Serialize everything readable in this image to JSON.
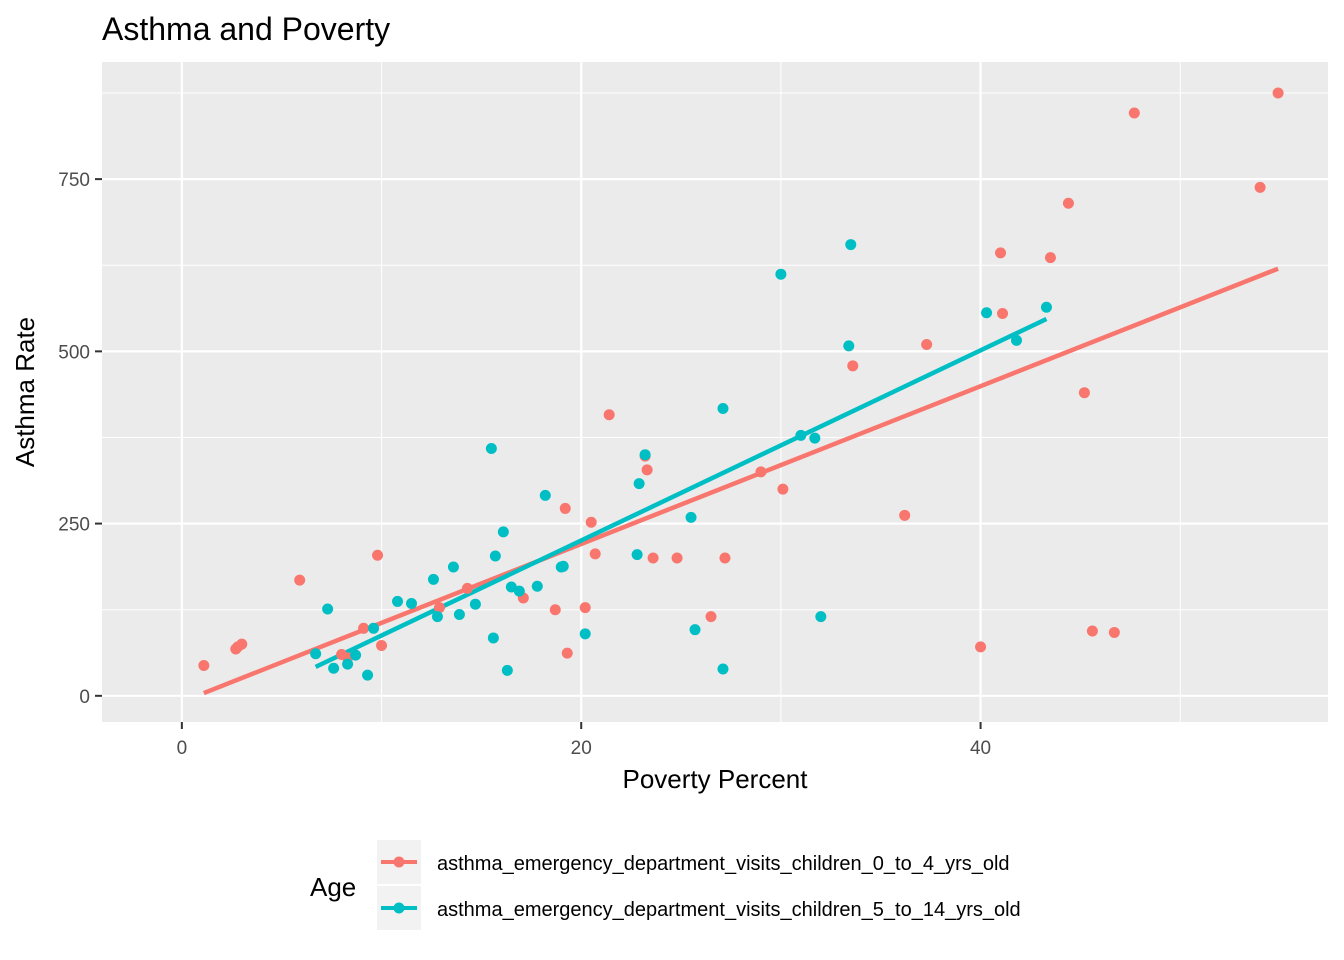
{
  "chart_data": {
    "type": "scatter",
    "title": "Asthma and Poverty",
    "xlabel": "Poverty Percent",
    "ylabel": "Asthma Rate",
    "xlim": [
      -4.0,
      57.4
    ],
    "ylim": [
      -38,
      920
    ],
    "x_ticks": [
      0,
      20,
      40
    ],
    "x_tick_labels": [
      "0",
      "20",
      "40"
    ],
    "x_minor_ticks": [
      10,
      30,
      50
    ],
    "y_ticks": [
      0,
      250,
      500,
      750
    ],
    "y_tick_labels": [
      "0",
      "250",
      "500",
      "750"
    ],
    "y_minor_ticks": [
      125,
      375,
      625,
      875
    ],
    "grid": true,
    "legend": {
      "title": "Age",
      "position": "bottom"
    },
    "series": [
      {
        "name": "asthma_emergency_department_visits_children_0_to_4_yrs_old",
        "color": "#F8766D",
        "points": [
          [
            1.1,
            44
          ],
          [
            2.7,
            68
          ],
          [
            2.8,
            71
          ],
          [
            3.0,
            75
          ],
          [
            5.9,
            168
          ],
          [
            8.0,
            60
          ],
          [
            8.3,
            55
          ],
          [
            9.1,
            98
          ],
          [
            9.8,
            204
          ],
          [
            10.0,
            73
          ],
          [
            12.9,
            128
          ],
          [
            14.3,
            156
          ],
          [
            17.1,
            142
          ],
          [
            18.7,
            125
          ],
          [
            19.2,
            272
          ],
          [
            19.3,
            62
          ],
          [
            20.2,
            128
          ],
          [
            20.5,
            252
          ],
          [
            20.7,
            206
          ],
          [
            21.4,
            408
          ],
          [
            23.2,
            348
          ],
          [
            23.3,
            328
          ],
          [
            23.6,
            200
          ],
          [
            24.8,
            200
          ],
          [
            26.5,
            115
          ],
          [
            27.2,
            200
          ],
          [
            29.0,
            325
          ],
          [
            30.1,
            300
          ],
          [
            33.6,
            479
          ],
          [
            36.2,
            262
          ],
          [
            37.3,
            510
          ],
          [
            40.0,
            71
          ],
          [
            41.0,
            643
          ],
          [
            41.1,
            555
          ],
          [
            43.5,
            636
          ],
          [
            44.4,
            715
          ],
          [
            45.2,
            440
          ],
          [
            45.6,
            94
          ],
          [
            46.7,
            92
          ],
          [
            47.7,
            846
          ],
          [
            54.0,
            738
          ],
          [
            54.9,
            875
          ]
        ],
        "trend": {
          "x": [
            1.1,
            54.9
          ],
          "y": [
            4,
            620
          ]
        }
      },
      {
        "name": "asthma_emergency_department_visits_children_5_to_14_yrs_old",
        "color": "#00BFC4",
        "points": [
          [
            6.7,
            61
          ],
          [
            7.3,
            126
          ],
          [
            7.6,
            40
          ],
          [
            8.3,
            46
          ],
          [
            8.7,
            59
          ],
          [
            9.3,
            30
          ],
          [
            9.6,
            98
          ],
          [
            10.8,
            137
          ],
          [
            11.5,
            134
          ],
          [
            12.6,
            169
          ],
          [
            12.8,
            115
          ],
          [
            13.6,
            187
          ],
          [
            13.9,
            118
          ],
          [
            14.7,
            133
          ],
          [
            15.5,
            359
          ],
          [
            15.6,
            84
          ],
          [
            15.7,
            203
          ],
          [
            16.1,
            238
          ],
          [
            16.3,
            37
          ],
          [
            16.5,
            158
          ],
          [
            16.9,
            152
          ],
          [
            17.8,
            159
          ],
          [
            18.2,
            291
          ],
          [
            19.0,
            187
          ],
          [
            19.1,
            188
          ],
          [
            20.2,
            90
          ],
          [
            22.8,
            205
          ],
          [
            22.9,
            308
          ],
          [
            23.2,
            350
          ],
          [
            25.5,
            259
          ],
          [
            25.7,
            96
          ],
          [
            27.1,
            417
          ],
          [
            27.1,
            39
          ],
          [
            30.0,
            612
          ],
          [
            31.0,
            378
          ],
          [
            31.7,
            374
          ],
          [
            32.0,
            115
          ],
          [
            33.4,
            508
          ],
          [
            33.5,
            655
          ],
          [
            40.3,
            556
          ],
          [
            41.8,
            516
          ],
          [
            43.3,
            564
          ]
        ],
        "trend": {
          "x": [
            6.7,
            43.3
          ],
          "y": [
            42,
            547
          ]
        }
      }
    ]
  }
}
